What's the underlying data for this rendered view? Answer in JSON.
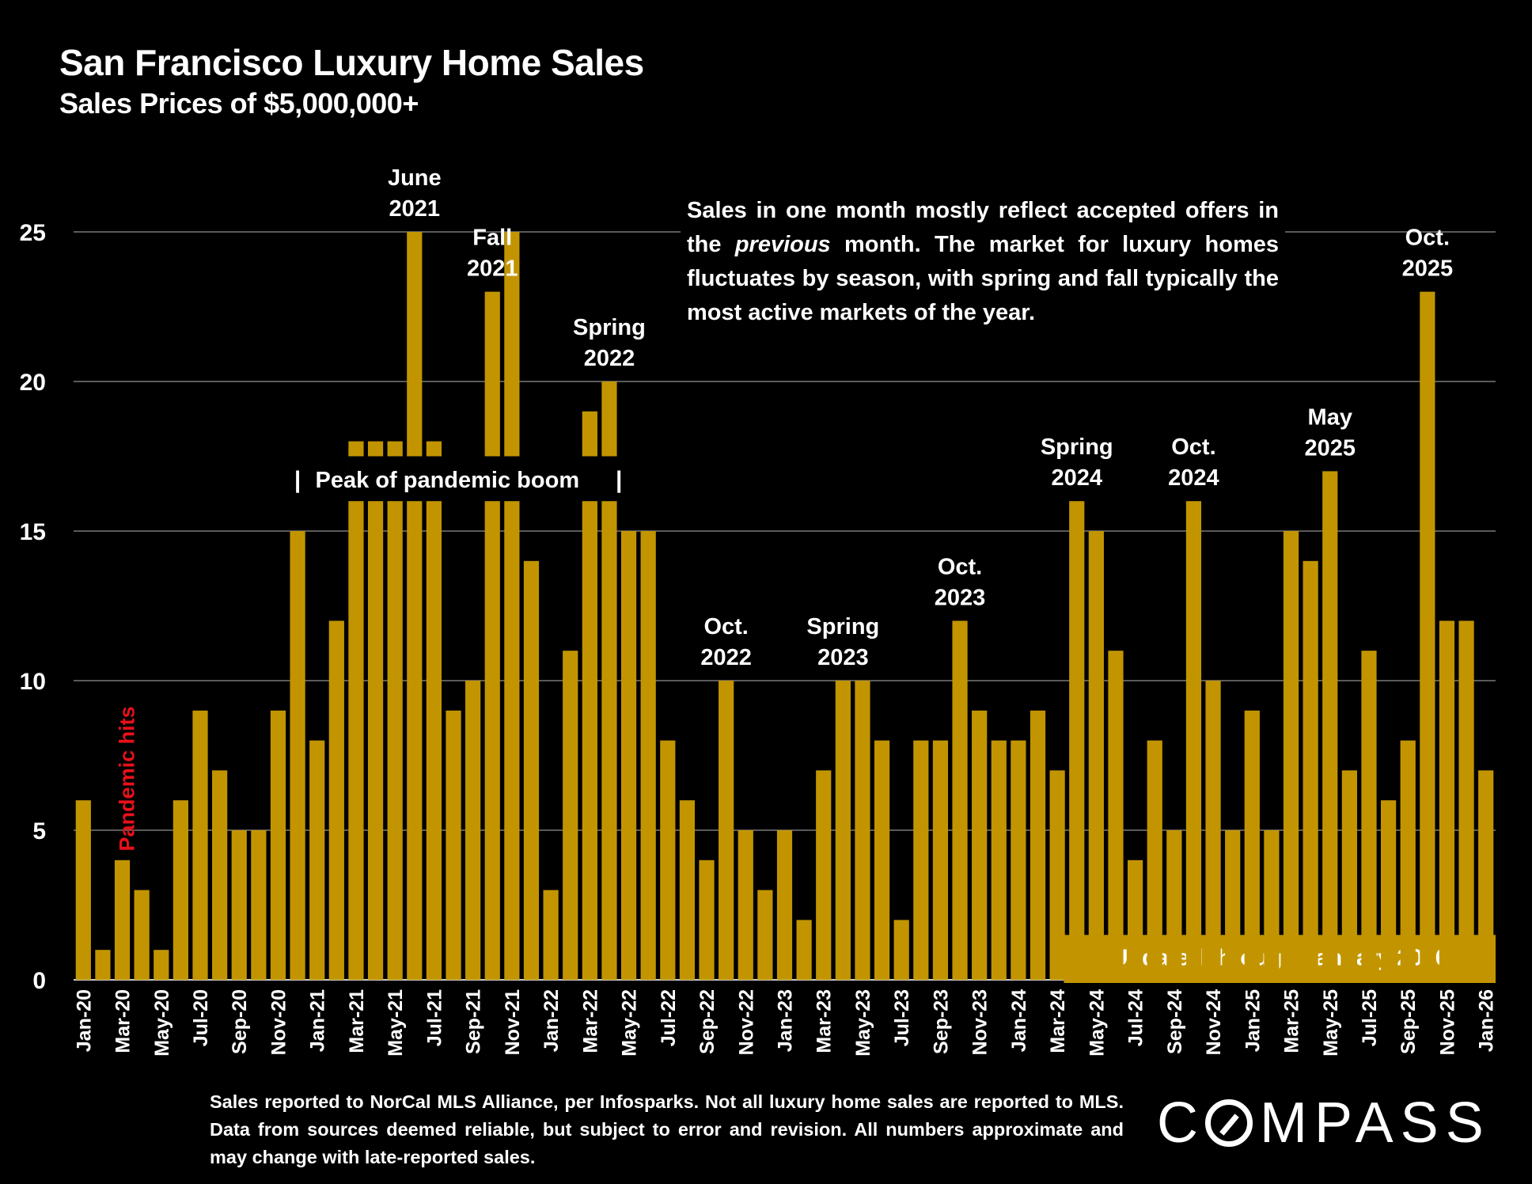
{
  "header": {
    "title": "San Francisco Luxury Home Sales",
    "subtitle": "Sales Prices of $5,000,000+"
  },
  "note": {
    "part1": "Sales in one month mostly reflect accepted offers in the ",
    "italic": "previous",
    "part2": " month. The market for luxury homes fluctuates by season, with spring and fall typically the most active markets of the year."
  },
  "footer": {
    "text": "Sales reported to NorCal MLS Alliance, per  Infosparks. Not all luxury home sales are reported to MLS. Data from sources deemed reliable, but subject to error and revision. All numbers approximate and may change with late-reported sales.",
    "logo_left": "C",
    "logo_right": "MPASS"
  },
  "colors": {
    "bar": "#C29500",
    "grid": "#5a5a5a",
    "pandemic": "#E8101A",
    "background": "#000000",
    "text": "#FFFFFF"
  },
  "chart_data": {
    "type": "bar",
    "title": "San Francisco Luxury Home Sales",
    "subtitle": "Sales Prices of $5,000,000+",
    "xlabel": "",
    "ylabel": "",
    "ylim": [
      0,
      25
    ],
    "yticks": [
      0,
      5,
      10,
      15,
      20,
      25
    ],
    "grid": true,
    "axis_break": {
      "from": 16,
      "to": 17.5,
      "label": "Peak of pandemic boom"
    },
    "categories": [
      "Jan-20",
      "Feb-20",
      "Mar-20",
      "Apr-20",
      "May-20",
      "Jun-20",
      "Jul-20",
      "Aug-20",
      "Sep-20",
      "Oct-20",
      "Nov-20",
      "Dec-20",
      "Jan-21",
      "Feb-21",
      "Mar-21",
      "Apr-21",
      "May-21",
      "Jun-21",
      "Jul-21",
      "Aug-21",
      "Sep-21",
      "Oct-21",
      "Nov-21",
      "Dec-21",
      "Jan-22",
      "Feb-22",
      "Mar-22",
      "Apr-22",
      "May-22",
      "Jun-22",
      "Jul-22",
      "Aug-22",
      "Sep-22",
      "Oct-22",
      "Nov-22",
      "Dec-22",
      "Jan-23",
      "Feb-23",
      "Mar-23",
      "Apr-23",
      "May-23",
      "Jun-23",
      "Jul-23",
      "Aug-23",
      "Sep-23",
      "Oct-23",
      "Nov-23",
      "Dec-23",
      "Jan-24",
      "Feb-24",
      "Mar-24",
      "Apr-24",
      "May-24",
      "Jun-24",
      "Jul-24",
      "Aug-24",
      "Sep-24",
      "Oct-24",
      "Nov-24",
      "Dec-24",
      "Jan-25",
      "Feb-25",
      "Mar-25",
      "Apr-25",
      "May-25",
      "Jun-25",
      "Jul-25",
      "Aug-25",
      "Sep-25",
      "Oct-25",
      "Nov-25",
      "Dec-25",
      "Jan-26"
    ],
    "values": [
      6,
      1,
      4,
      3,
      1,
      6,
      9,
      7,
      5,
      5,
      9,
      15,
      8,
      12,
      18,
      18,
      18,
      25,
      18,
      9,
      10,
      23,
      25,
      14,
      3,
      11,
      19,
      20,
      15,
      15,
      8,
      6,
      4,
      10,
      5,
      3,
      5,
      2,
      7,
      10,
      10,
      8,
      2,
      8,
      8,
      12,
      9,
      8,
      8,
      9,
      7,
      16,
      15,
      11,
      4,
      8,
      5,
      16,
      10,
      5,
      9,
      5,
      15,
      14,
      17,
      7,
      11,
      6,
      8,
      23,
      12,
      12,
      7
    ],
    "tick_labels_shown_every": 2,
    "annotations": [
      {
        "text": [
          "Pandemic hits"
        ],
        "at": "Mar-20",
        "color": "#E8101A",
        "rotated": true
      },
      {
        "text": [
          "June",
          "2021"
        ],
        "at": "Jun-21"
      },
      {
        "text": [
          "Fall",
          "2021"
        ],
        "at": "Oct-21",
        "offset": 0.5
      },
      {
        "text": [
          "Spring",
          "2022"
        ],
        "at": "Apr-22",
        "offset": 0
      },
      {
        "text": [
          "Oct.",
          "2022"
        ],
        "at": "Oct-22"
      },
      {
        "text": [
          "Spring",
          "2023"
        ],
        "at": "Apr-23",
        "offset": 0.5
      },
      {
        "text": [
          "Oct.",
          "2023"
        ],
        "at": "Oct-23"
      },
      {
        "text": [
          "Spring",
          "2024"
        ],
        "at": "Apr-24"
      },
      {
        "text": [
          "Oct.",
          "2024"
        ],
        "at": "Oct-24"
      },
      {
        "text": [
          "May",
          "2025"
        ],
        "at": "May-25"
      },
      {
        "text": [
          "Oct.",
          "2025"
        ],
        "at": "Oct-25"
      }
    ],
    "banner": {
      "text": "Updated through January 2026",
      "from": "Apr-24",
      "to": "Jan-26"
    }
  }
}
